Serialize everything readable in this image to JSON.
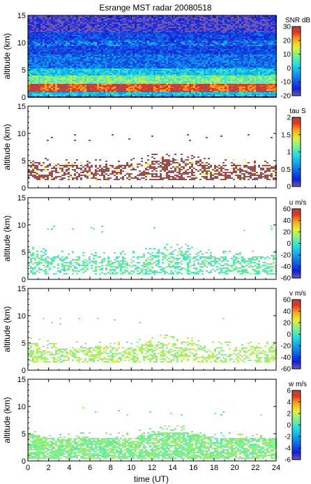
{
  "chart_data": [
    {
      "type": "heatmap",
      "title": "Esrange MST radar 20080518",
      "ylabel": "altitude (km)",
      "xlabel": "",
      "xlim": [
        0,
        24
      ],
      "ylim": [
        0,
        15
      ],
      "yticks": [
        "0",
        "5",
        "10",
        "15"
      ],
      "xticks": [
        "0",
        "2",
        "4",
        "6",
        "8",
        "10",
        "12",
        "14",
        "16",
        "18",
        "20",
        "22",
        "24"
      ],
      "colorbar": {
        "label": "SNR dB",
        "range": [
          -20,
          30
        ],
        "ticks": [
          "30",
          "20",
          "10",
          "0",
          "-10",
          "-20"
        ]
      },
      "layers": [
        {
          "alt_range": [
            0.3,
            1.0
          ],
          "value": 0
        },
        {
          "alt_range": [
            1.0,
            2.5
          ],
          "value": 24
        },
        {
          "alt_range": [
            2.5,
            4.0
          ],
          "value": 8
        },
        {
          "alt_range": [
            4.0,
            5.5
          ],
          "value": 0
        },
        {
          "alt_range": [
            5.5,
            8.0
          ],
          "value": -8
        },
        {
          "alt_range": [
            8.0,
            12.0
          ],
          "value": -12
        },
        {
          "alt_range": [
            12.0,
            15.0
          ],
          "value": -18
        }
      ]
    },
    {
      "type": "heatmap",
      "ylabel": "altitude (km)",
      "xlim": [
        0,
        24
      ],
      "ylim": [
        0,
        15
      ],
      "yticks": [
        "0",
        "5",
        "10",
        "15"
      ],
      "xticks": [
        "0",
        "2",
        "4",
        "6",
        "8",
        "10",
        "12",
        "14",
        "16",
        "18",
        "20",
        "22",
        "24"
      ],
      "colorbar": {
        "label": "tau S",
        "range": [
          0,
          2
        ],
        "ticks": [
          "2",
          "1.5",
          "1",
          "0.5",
          "0"
        ]
      },
      "dominant_value": 2,
      "echo_band_km": [
        1.5,
        5.5
      ]
    },
    {
      "type": "heatmap",
      "ylabel": "altitude (km)",
      "xlim": [
        0,
        24
      ],
      "ylim": [
        0,
        15
      ],
      "yticks": [
        "0",
        "5",
        "10",
        "15"
      ],
      "xticks": [
        "0",
        "2",
        "4",
        "6",
        "8",
        "10",
        "12",
        "14",
        "16",
        "18",
        "20",
        "22",
        "24"
      ],
      "colorbar": {
        "label": "u m/s",
        "range": [
          -60,
          60
        ],
        "ticks": [
          "60",
          "40",
          "20",
          "0",
          "-20",
          "-40",
          "-60"
        ]
      },
      "dominant_value": 5,
      "echo_band_km": [
        1.0,
        5.5
      ]
    },
    {
      "type": "heatmap",
      "ylabel": "altitude (km)",
      "xlim": [
        0,
        24
      ],
      "ylim": [
        0,
        15
      ],
      "yticks": [
        "0",
        "5",
        "10",
        "15"
      ],
      "xticks": [
        "0",
        "2",
        "4",
        "6",
        "8",
        "10",
        "12",
        "14",
        "16",
        "18",
        "20",
        "22",
        "24"
      ],
      "colorbar": {
        "label": "v m/s",
        "range": [
          -60,
          60
        ],
        "ticks": [
          "60",
          "40",
          "20",
          "0",
          "-20",
          "-40",
          "-60"
        ]
      },
      "dominant_value": 15,
      "echo_band_km": [
        1.5,
        5.5
      ]
    },
    {
      "type": "heatmap",
      "ylabel": "altitude (km)",
      "xlabel": "time (UT)",
      "xlim": [
        0,
        24
      ],
      "ylim": [
        0,
        15
      ],
      "yticks": [
        "0",
        "5",
        "10",
        "15"
      ],
      "xticks": [
        "0",
        "2",
        "4",
        "6",
        "8",
        "10",
        "12",
        "14",
        "16",
        "18",
        "20",
        "22",
        "24"
      ],
      "colorbar": {
        "label": "w m/s",
        "range": [
          -6,
          6
        ],
        "ticks": [
          "6",
          "4",
          "2",
          "0",
          "-2",
          "-4",
          "-6"
        ]
      },
      "dominant_value": 1,
      "echo_band_km": [
        0.5,
        5.5
      ]
    }
  ]
}
